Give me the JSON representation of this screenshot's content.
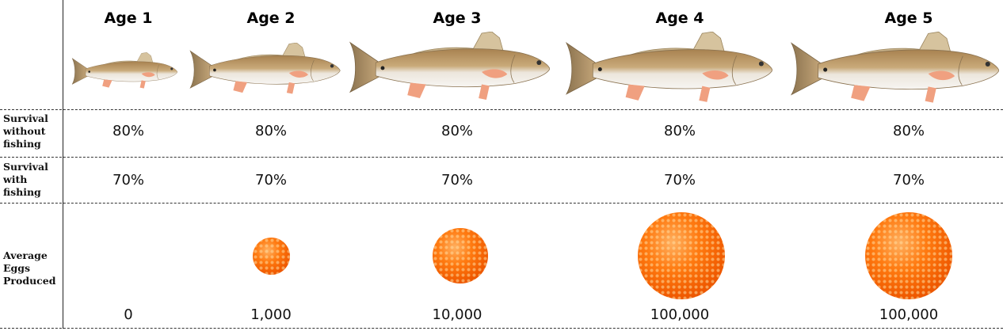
{
  "ages": [
    "Age 1",
    "Age 2",
    "Age 3",
    "Age 4",
    "Age 5"
  ],
  "row_labels": {
    "survival_without": [
      "Survival",
      "without",
      "fishing"
    ],
    "survival_with": [
      "Survival",
      "with",
      "fishing"
    ],
    "eggs": [
      "Average",
      "Eggs",
      "Produced"
    ]
  },
  "survival_without_fishing": [
    "80%",
    "80%",
    "80%",
    "80%",
    "80%"
  ],
  "survival_with_fishing": [
    "70%",
    "70%",
    "70%",
    "70%",
    "70%"
  ],
  "average_eggs": [
    "0",
    "1,000",
    "10,000",
    "100,000",
    "100,000"
  ],
  "colors": {
    "egg": "#f26a00",
    "fin": "#f0a080",
    "body_top": "#b8935f"
  }
}
